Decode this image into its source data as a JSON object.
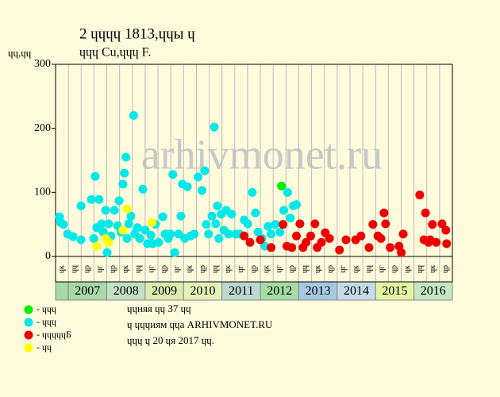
{
  "chart_data": {
    "type": "scatter",
    "title": "2 ɥɥɥɥ 1813,ɥɥы ɥ",
    "subtitle": "ɥɥɥ Cu,ɥɥɥ F.",
    "y_label": "ɥɥ,ɥɥ",
    "watermark": "arhivmonet.ru",
    "ylim": [
      0,
      300
    ],
    "yticks": [
      0,
      100,
      200,
      300
    ],
    "xlim": [
      2006.667,
      2017
    ],
    "years": [
      {
        "label": "2007",
        "start": 2007,
        "color": "#a8d8a8"
      },
      {
        "label": "2008",
        "start": 2008,
        "color": "#c4e0c4"
      },
      {
        "label": "2009",
        "start": 2009,
        "color": "#dcecb0"
      },
      {
        "label": "2010",
        "start": 2010,
        "color": "#e4f2b8"
      },
      {
        "label": "2011",
        "start": 2011,
        "color": "#bcd8d0"
      },
      {
        "label": "2012",
        "start": 2012,
        "color": "#a4dca4"
      },
      {
        "label": "2013",
        "start": 2013,
        "color": "#a8c8e0"
      },
      {
        "label": "2014",
        "start": 2014,
        "color": "#c4dce8"
      },
      {
        "label": "2015",
        "start": 2015,
        "color": "#e4f2a4"
      },
      {
        "label": "2016",
        "start": 2016,
        "color": "#c4e8c4"
      }
    ],
    "sub_labels": [
      "ɥк",
      "ɥɥ",
      "ɥр",
      "ɥг",
      "ɥр",
      "ɥк",
      "ɥɥ",
      "ɥг",
      "ɥр",
      "ɥг",
      "ɥк",
      "ɥр",
      "ɥɥ",
      "ɥк",
      "ɥг",
      "ɥр",
      "ɥк",
      "ɥг",
      "ɥр",
      "ɥɥ",
      "ɥк",
      "ɥр",
      "ɥг",
      "ɥк",
      "ɥɥ",
      "ɥг",
      "ɥр",
      "ɥк",
      "ɥɥ",
      "ɥк",
      "ɥр"
    ],
    "series": [
      {
        "name": "- ɥɥɥ",
        "color": "#00ee00",
        "x": [
          2012.55
        ],
        "values": [
          110
        ]
      },
      {
        "name": "- ɥɥɥ",
        "color": "#00e8e8",
        "x": [
          2006.77,
          2006.8,
          2006.87,
          2006.98,
          2007.12,
          2007.33,
          2007.33,
          2007.6,
          2007.66,
          2007.7,
          2007.74,
          2007.8,
          2007.87,
          2007.91,
          2007.97,
          2008.01,
          2008.05,
          2008.11,
          2008.2,
          2008.28,
          2008.32,
          2008.37,
          2008.42,
          2008.46,
          2008.5,
          2008.53,
          2008.57,
          2008.63,
          2008.7,
          2008.73,
          2008.8,
          2008.86,
          2008.94,
          2009.0,
          2009.06,
          2009.15,
          2009.2,
          2009.27,
          2009.35,
          2009.46,
          2009.52,
          2009.6,
          2009.66,
          2009.72,
          2009.77,
          2009.87,
          2009.93,
          2009.97,
          2010.03,
          2010.1,
          2010.18,
          2010.28,
          2010.38,
          2010.48,
          2010.55,
          2010.59,
          2010.65,
          2010.74,
          2010.8,
          2010.84,
          2010.88,
          2010.92,
          2010.98,
          2011.05,
          2011.11,
          2011.17,
          2011.25,
          2011.36,
          2011.46,
          2011.58,
          2011.67,
          2011.79,
          2011.87,
          2011.94,
          2012.04,
          2012.12,
          2012.2,
          2012.28,
          2012.39,
          2012.51,
          2012.61,
          2012.71,
          2012.78,
          2012.86,
          2012.94
        ],
        "values": [
          62,
          53,
          50,
          35,
          31,
          79,
          26,
          89,
          28,
          125,
          45,
          89,
          51,
          38,
          72,
          6,
          51,
          32,
          72,
          48,
          87,
          38,
          113,
          130,
          155,
          28,
          51,
          63,
          220,
          35,
          45,
          28,
          105,
          41,
          20,
          33,
          20,
          50,
          22,
          62,
          35,
          28,
          35,
          128,
          6,
          35,
          63,
          113,
          28,
          109,
          32,
          35,
          124,
          103,
          134,
          50,
          35,
          63,
          202,
          51,
          79,
          28,
          66,
          41,
          72,
          35,
          66,
          35,
          35,
          57,
          51,
          100,
          68,
          38,
          28,
          16,
          47,
          35,
          50,
          38,
          72,
          100,
          60,
          79,
          81
        ]
      },
      {
        "name": "- ɥɥɥɥɥБ",
        "color": "#ee0000",
        "x": [
          2011.58,
          2011.73,
          2012.0,
          2012.28,
          2012.59,
          2012.69,
          2012.82,
          2012.94,
          2013.03,
          2013.11,
          2013.19,
          2013.31,
          2013.42,
          2013.48,
          2013.59,
          2013.69,
          2013.8,
          2014.06,
          2014.23,
          2014.48,
          2014.62,
          2014.83,
          2014.93,
          2015.06,
          2015.14,
          2015.22,
          2015.26,
          2015.38,
          2015.61,
          2015.67,
          2015.72,
          2016.15,
          2016.26,
          2016.3,
          2016.38,
          2016.42,
          2016.48,
          2016.58,
          2016.73,
          2016.83,
          2016.85
        ],
        "values": [
          32,
          22,
          26,
          14,
          50,
          16,
          14,
          32,
          51,
          14,
          22,
          32,
          51,
          14,
          22,
          37,
          28,
          10,
          26,
          26,
          32,
          14,
          50,
          32,
          28,
          68,
          51,
          14,
          16,
          6,
          35,
          96,
          26,
          68,
          22,
          26,
          50,
          22,
          51,
          41,
          20
        ]
      },
      {
        "name": "- ɥɥ",
        "color": "#ffff00",
        "x": [
          2007.74,
          2007.97,
          2008.05,
          2008.42,
          2008.53,
          2009.18
        ],
        "values": [
          16,
          28,
          22,
          41,
          74,
          53
        ]
      }
    ],
    "notes": [
      "ɥɥняя ɥɥ 37 ɥɥ",
      "ɥ ɥɥɥиям ɥɥа ARHIVMONET.RU",
      "ɥɥɥ ɥ 20 ɥя 2017 ɥɥ."
    ]
  }
}
